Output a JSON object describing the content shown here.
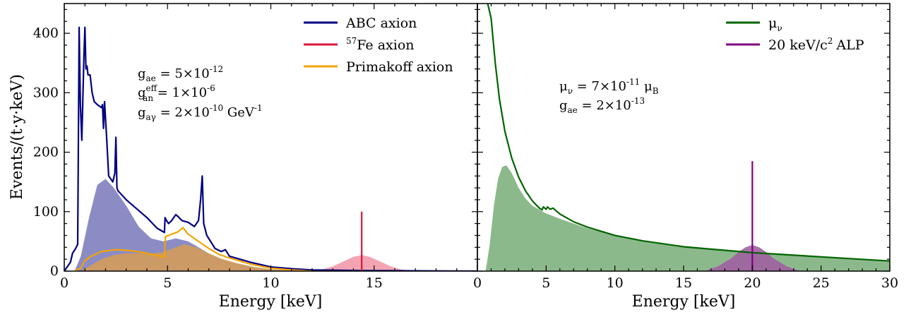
{
  "chart_data": {
    "type": "line",
    "ylabel": "Events/(t·y·keV)",
    "panels": [
      {
        "xlabel": "Energy [keV]",
        "xlim": [
          0,
          20
        ],
        "ylim": [
          0,
          450
        ],
        "xticks": [
          0,
          5,
          10,
          15
        ],
        "yticks": [
          0,
          100,
          200,
          300,
          400
        ],
        "legend_position": "top-right",
        "series": [
          {
            "name": "ABC axion",
            "color": "#000080",
            "x": [
              0,
              0.3,
              0.4,
              0.55,
              0.65,
              0.68,
              0.72,
              0.78,
              0.85,
              0.95,
              1.0,
              1.05,
              1.1,
              1.15,
              1.25,
              1.35,
              1.45,
              1.6,
              1.8,
              1.85,
              1.9,
              1.95,
              2.05,
              2.15,
              2.35,
              2.45,
              2.5,
              2.55,
              2.6,
              3.0,
              3.5,
              4.0,
              4.5,
              4.85,
              4.88,
              4.95,
              5.05,
              5.2,
              5.4,
              5.5,
              5.7,
              6.0,
              6.3,
              6.5,
              6.6,
              6.68,
              6.75,
              6.9,
              7.3,
              7.6,
              7.8,
              8.0,
              9.0,
              10.0,
              11.0,
              12.0,
              14.0,
              20.0
            ],
            "y": [
              0,
              15,
              30,
              38,
              45,
              200,
              410,
              280,
              220,
              360,
              410,
              340,
              345,
              330,
              330,
              300,
              285,
              280,
              275,
              280,
              240,
              285,
              225,
              160,
              150,
              165,
              225,
              140,
              135,
              120,
              105,
              90,
              72,
              65,
              90,
              85,
              80,
              85,
              95,
              92,
              85,
              82,
              75,
              85,
              120,
              160,
              80,
              60,
              38,
              33,
              36,
              25,
              15,
              7,
              4,
              2,
              1,
              0
            ]
          },
          {
            "name": "⁵⁷Fe axion",
            "color": "#dc143c",
            "x": [
              14.4,
              14.4
            ],
            "y": [
              0,
              100
            ]
          },
          {
            "name": "Primakoff axion",
            "color": "#f4a300",
            "x": [
              0.5,
              0.8,
              1.0,
              1.3,
              1.8,
              2.5,
              3.0,
              3.5,
              4.0,
              4.5,
              4.85,
              4.9,
              5.2,
              5.5,
              5.75,
              6.0,
              6.5,
              7.0,
              7.5,
              8.0,
              9.0,
              10.0,
              11.0,
              12.0
            ],
            "y": [
              0,
              5,
              18,
              25,
              33,
              36,
              35,
              33,
              30,
              26,
              24,
              58,
              62,
              66,
              73,
              62,
              50,
              38,
              28,
              22,
              12,
              5,
              2,
              0
            ]
          }
        ],
        "filled_areas": [
          {
            "name": "ABC axion smeared",
            "color": "#7f7fbf",
            "x": [
              0.5,
              0.8,
              1.2,
              1.6,
              2.0,
              2.4,
              3.0,
              3.6,
              4.2,
              4.8,
              5.4,
              6.0,
              6.6,
              7.2,
              8.0,
              9.0,
              10.0,
              11.0,
              12.0
            ],
            "y": [
              0,
              25,
              90,
              145,
              155,
              140,
              110,
              75,
              55,
              50,
              55,
              50,
              38,
              25,
              15,
              7,
              3,
              1,
              0
            ]
          },
          {
            "name": "⁵⁷Fe axion smeared",
            "color": "#f29aab",
            "x": [
              11.8,
              12.5,
              13.0,
              13.5,
              14.0,
              14.4,
              14.8,
              15.3,
              15.8,
              16.3,
              17.0
            ],
            "y": [
              0,
              3,
              8,
              16,
              24,
              27,
              24,
              16,
              8,
              3,
              0
            ]
          },
          {
            "name": "Primakoff axion smeared",
            "color": "#d19b5a",
            "x": [
              0.8,
              1.3,
              1.8,
              2.4,
              3.0,
              3.6,
              4.2,
              4.8,
              5.4,
              5.8,
              6.4,
              7.0,
              7.6,
              8.4,
              9.2,
              10.0,
              11.0,
              12.0
            ],
            "y": [
              0,
              10,
              20,
              27,
              30,
              30,
              29,
              32,
              40,
              45,
              40,
              30,
              21,
              13,
              7,
              3,
              1,
              0
            ]
          }
        ],
        "annotations": [
          {
            "text": "g_ae = 5×10^-12"
          },
          {
            "text": "g_an^eff = 1×10^-6"
          },
          {
            "text": "g_aγ = 2×10^-10 GeV^-1"
          }
        ]
      },
      {
        "xlabel": "Energy [keV]",
        "xlim": [
          0,
          30
        ],
        "ylim": [
          0,
          450
        ],
        "xticks": [
          0,
          5,
          10,
          15,
          20,
          25,
          30
        ],
        "yticks": [
          0,
          100,
          200,
          300,
          400
        ],
        "legend_position": "top-right",
        "series": [
          {
            "name": "μ_ν",
            "color": "#006400",
            "x": [
              0.75,
              1.0,
              1.3,
              1.6,
              2.0,
              2.5,
              3.0,
              3.5,
              4.0,
              4.5,
              4.7,
              4.8,
              5.0,
              5.1,
              5.3,
              5.5,
              6.0,
              7.0,
              8.0,
              10.0,
              12.0,
              15.0,
              20.0,
              25.0,
              30.0
            ],
            "y": [
              450,
              425,
              350,
              290,
              235,
              190,
              158,
              135,
              118,
              106,
              103,
              108,
              104,
              108,
              104,
              106,
              96,
              83,
              74,
              60,
              51,
              41,
              31,
              24,
              17
            ]
          },
          {
            "name": "20 keV/c² ALP",
            "color": "#800080",
            "x": [
              20,
              20
            ],
            "y": [
              0,
              185
            ]
          }
        ],
        "filled_areas": [
          {
            "name": "μ_ν smeared",
            "color": "#7fb17f",
            "x": [
              0.6,
              0.9,
              1.2,
              1.5,
              1.8,
              2.1,
              2.5,
              3.0,
              3.5,
              4.0,
              5.0,
              6.0,
              8.0,
              10.0,
              12.0,
              15.0,
              20.0,
              25.0,
              30.0
            ],
            "y": [
              0,
              45,
              110,
              155,
              175,
              178,
              165,
              140,
              122,
              110,
              97,
              88,
              72,
              60,
              51,
              42,
              32,
              24,
              17
            ]
          },
          {
            "name": "20 keV/c² ALP smeared",
            "color": "#a060a0",
            "x": [
              16.5,
              17.5,
              18.5,
              19.0,
              19.5,
              20.0,
              20.5,
              21.0,
              21.5,
              22.5,
              23.5
            ],
            "y": [
              0,
              8,
              22,
              32,
              40,
              44,
              40,
              32,
              22,
              8,
              0
            ]
          }
        ],
        "annotations": [
          {
            "text": "μ_ν = 7×10^-11 μ_B"
          },
          {
            "text": "g_ae = 2×10^-13"
          }
        ]
      }
    ]
  },
  "legend": {
    "left": [
      "ABC axion",
      "Fe axion",
      "Primakoff axion"
    ],
    "left_fe_superscript": "57",
    "right": [
      "μ",
      "20 keV/c",
      "ALP"
    ],
    "right_mu_subscript": "ν",
    "right_alp_superscript": "2"
  },
  "annotations_left": {
    "g": "g",
    "ae_sub": "ae",
    "ae_eq": " = 5×10",
    "ae_exp": "-12",
    "an_sub": "an",
    "an_sup": "eff",
    "an_eq": " = 1×10",
    "an_exp": "-6",
    "ay_sub": "aγ",
    "ay_eq": " = 2×10",
    "ay_exp": "-10",
    "ay_unit": " GeV",
    "ay_unit_exp": "-1"
  },
  "annotations_right": {
    "mu": "μ",
    "mu_sub": "ν",
    "mu_eq": " = 7×10",
    "mu_exp": "-11",
    "mu_unit": " μ",
    "mu_unit_sub": "B",
    "g": "g",
    "ae_sub": "ae",
    "ae_eq": " = 2×10",
    "ae_exp": "-13"
  }
}
